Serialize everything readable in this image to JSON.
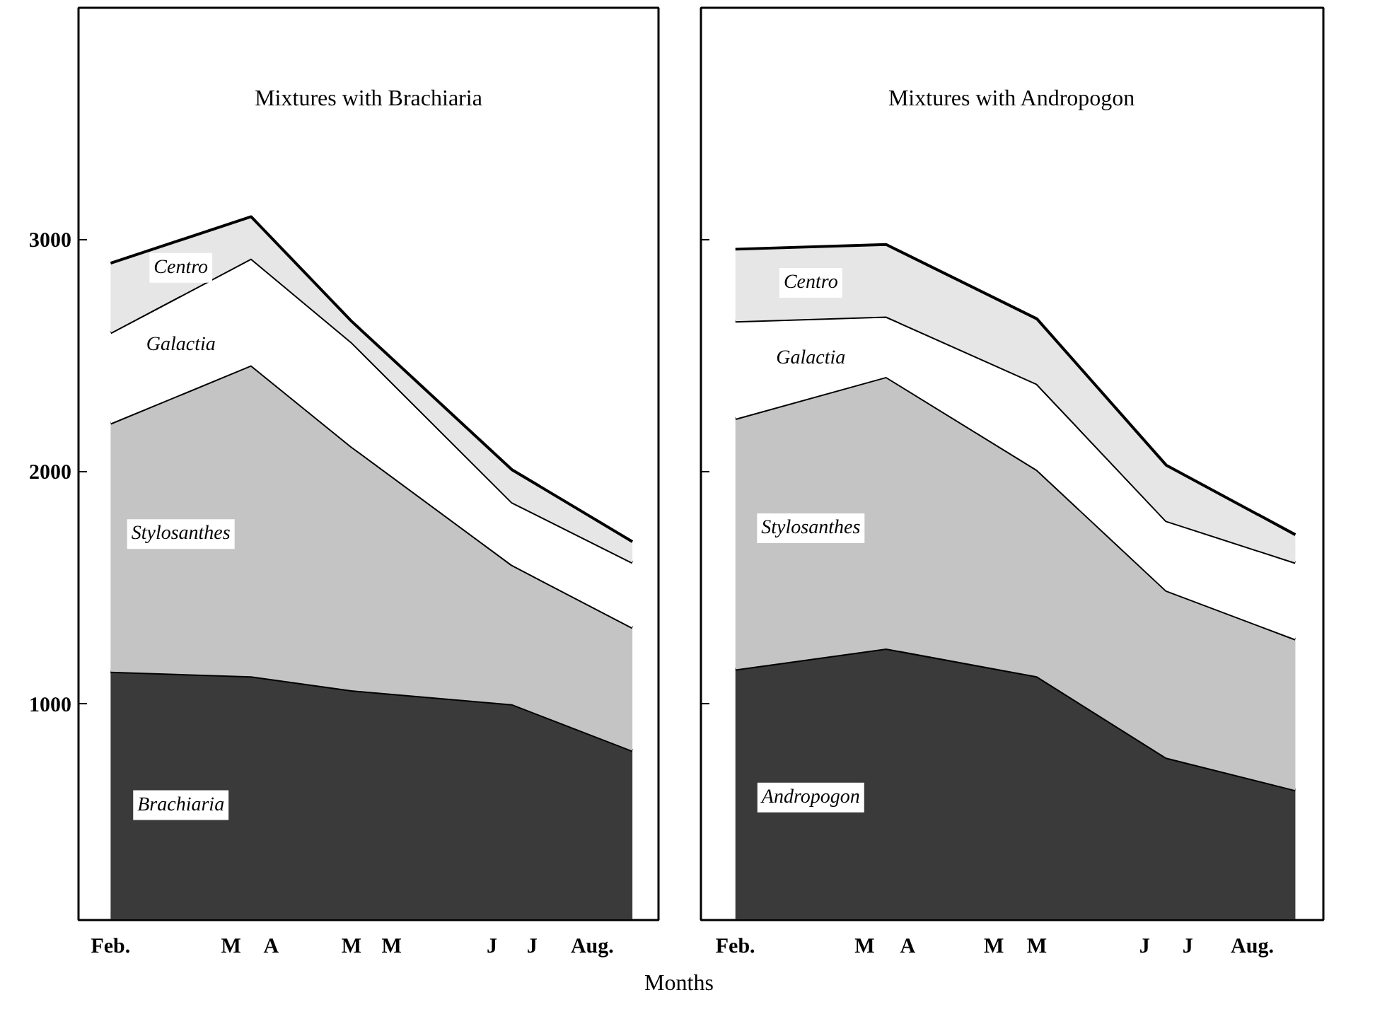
{
  "chart_data": [
    {
      "type": "area",
      "stacked": true,
      "title": "Mixtures with Brachiaria",
      "xlabel": "Months",
      "grid": false,
      "categories": [
        null,
        "Feb.",
        null,
        null,
        null,
        null,
        null,
        "M",
        null,
        "A",
        null,
        null,
        null,
        "M",
        null,
        "M",
        null,
        null,
        null,
        null,
        "J",
        null,
        "J",
        null,
        null,
        "Aug.",
        null,
        null
      ],
      "ylim": [
        70,
        4000
      ],
      "yticks": [
        1000,
        2000,
        3000
      ],
      "series": [
        {
          "name": "Brachiaria",
          "color": "#3a3a3a",
          "values": [
            null,
            1140,
            null,
            null,
            null,
            null,
            null,
            null,
            1120,
            null,
            null,
            null,
            null,
            1060,
            null,
            null,
            null,
            null,
            null,
            null,
            null,
            1000,
            null,
            null,
            null,
            null,
            null,
            800
          ]
        },
        {
          "name": "Stylosanthes",
          "color": "#c4c4c4",
          "values": [
            null,
            1070,
            null,
            null,
            null,
            null,
            null,
            null,
            1340,
            null,
            null,
            null,
            null,
            1050,
            null,
            null,
            null,
            null,
            null,
            null,
            null,
            600,
            null,
            null,
            null,
            null,
            null,
            530
          ]
        },
        {
          "name": "Galactia",
          "color": "#ffffff",
          "values": [
            null,
            390,
            null,
            null,
            null,
            null,
            null,
            null,
            460,
            null,
            null,
            null,
            null,
            450,
            null,
            null,
            null,
            null,
            null,
            null,
            null,
            270,
            null,
            null,
            null,
            null,
            null,
            280
          ]
        },
        {
          "name": "Centro",
          "color": "#e6e6e6",
          "values": [
            null,
            300,
            null,
            null,
            null,
            null,
            null,
            null,
            180,
            null,
            null,
            null,
            null,
            90,
            null,
            null,
            null,
            null,
            null,
            null,
            null,
            140,
            null,
            null,
            null,
            null,
            null,
            90
          ]
        }
      ]
    },
    {
      "type": "area",
      "stacked": true,
      "title": "Mixtures with Andropogon",
      "grid": false,
      "tick_labels": "x",
      "categories": [
        null,
        "Feb.",
        null,
        null,
        null,
        null,
        null,
        "M",
        null,
        "A",
        null,
        null,
        null,
        "M",
        null,
        "M",
        null,
        null,
        null,
        null,
        "J",
        null,
        "J",
        null,
        null,
        "Aug.",
        null,
        null
      ],
      "ylim": [
        70,
        4000
      ],
      "yticks": [
        1000,
        2000,
        3000
      ],
      "series": [
        {
          "name": "Andropogon",
          "color": "#3a3a3a",
          "values": [
            null,
            1150,
            null,
            null,
            null,
            null,
            null,
            null,
            1240,
            null,
            null,
            null,
            null,
            null,
            null,
            1120,
            null,
            null,
            null,
            null,
            null,
            770,
            null,
            null,
            null,
            null,
            null,
            630
          ]
        },
        {
          "name": "Stylosanthes",
          "color": "#c4c4c4",
          "values": [
            null,
            1080,
            null,
            null,
            null,
            null,
            null,
            null,
            1170,
            null,
            null,
            null,
            null,
            null,
            null,
            890,
            null,
            null,
            null,
            null,
            null,
            720,
            null,
            null,
            null,
            null,
            null,
            650
          ]
        },
        {
          "name": "Galactia",
          "color": "#ffffff",
          "values": [
            null,
            420,
            null,
            null,
            null,
            null,
            null,
            null,
            260,
            null,
            null,
            null,
            null,
            null,
            null,
            370,
            null,
            null,
            null,
            null,
            null,
            300,
            null,
            null,
            null,
            null,
            null,
            330
          ]
        },
        {
          "name": "Centro",
          "color": "#e6e6e6",
          "values": [
            null,
            310,
            null,
            null,
            null,
            null,
            null,
            null,
            310,
            null,
            null,
            null,
            null,
            null,
            null,
            280,
            null,
            null,
            null,
            null,
            null,
            240,
            null,
            null,
            null,
            null,
            null,
            120
          ]
        }
      ]
    }
  ]
}
